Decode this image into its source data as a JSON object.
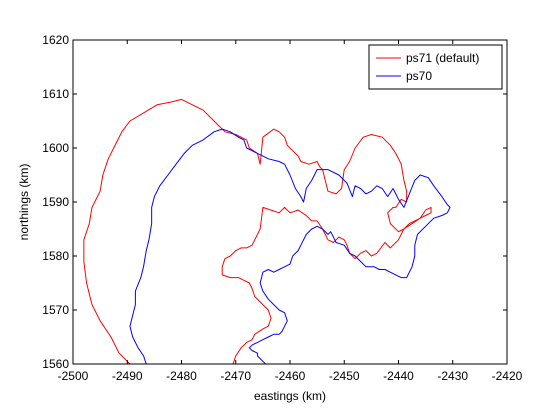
{
  "chart_data": {
    "type": "line",
    "title": "",
    "xlabel": "eastings (km)",
    "ylabel": "northings (km)",
    "xlim": [
      -2500,
      -2420
    ],
    "ylim": [
      1560,
      1620
    ],
    "xticks": [
      -2500,
      -2490,
      -2480,
      -2470,
      -2460,
      -2450,
      -2440,
      -2430,
      -2420
    ],
    "yticks": [
      1560,
      1570,
      1580,
      1590,
      1600,
      1610,
      1620
    ],
    "xtick_labels": [
      "-2500",
      "-2490",
      "-2480",
      "-2470",
      "-2460",
      "-2450",
      "-2440",
      "-2430",
      "-2420"
    ],
    "ytick_labels": [
      "1560",
      "1570",
      "1580",
      "1590",
      "1600",
      "1610",
      "1620"
    ],
    "grid": false,
    "legend_position": "top-right",
    "series": [
      {
        "name": "ps71 (default)",
        "color": "#ff0000",
        "x": [
          -2489.5,
          -2491.5,
          -2493.0,
          -2495.0,
          -2496.5,
          -2497.5,
          -2498.0,
          -2498.0,
          -2497.0,
          -2496.5,
          -2495.0,
          -2494.5,
          -2493.5,
          -2492.0,
          -2491.0,
          -2489.5,
          -2487.0,
          -2484.5,
          -2482.0,
          -2480.0,
          -2478.0,
          -2476.0,
          -2474.0,
          -2472.0,
          -2470.0,
          -2468.0,
          -2467.5,
          -2466.0,
          -2465.5,
          -2465.0,
          -2463.0,
          -2462.0,
          -2461.0,
          -2460.5,
          -2459.5,
          -2458.5,
          -2458.0,
          -2456.5,
          -2455.0,
          -2454.5,
          -2454.0,
          -2453.5,
          -2453.0,
          -2451.5,
          -2450.5,
          -2450.0,
          -2449.0,
          -2448.0,
          -2446.5,
          -2445.0,
          -2443.0,
          -2441.5,
          -2440.5,
          -2439.5,
          -2439.0,
          -2438.5,
          -2438.5,
          -2439.5,
          -2440.5,
          -2441.0,
          -2442.0,
          -2441.5,
          -2440.0,
          -2439.0,
          -2437.5,
          -2436.0,
          -2435.0,
          -2434.0,
          -2434.0,
          -2435.0,
          -2436.0,
          -2437.0,
          -2438.0,
          -2439.0,
          -2440.0,
          -2441.5,
          -2442.5,
          -2444.0,
          -2445.0,
          -2446.0,
          -2447.0,
          -2448.0,
          -2449.0,
          -2449.5,
          -2450.0,
          -2451.0,
          -2452.0,
          -2453.0,
          -2454.0,
          -2455.0,
          -2456.0,
          -2457.0,
          -2458.5,
          -2460.0,
          -2461.0,
          -2462.0,
          -2463.5,
          -2465.0,
          -2465.5,
          -2466.0,
          -2466.5,
          -2467.0,
          -2468.0,
          -2469.0,
          -2470.0,
          -2471.0,
          -2472.0,
          -2472.5,
          -2472.5,
          -2471.0,
          -2469.5,
          -2468.5,
          -2467.5,
          -2467.0,
          -2466.5,
          -2465.0,
          -2464.0,
          -2463.5,
          -2464.0,
          -2465.0,
          -2466.5,
          -2467.0,
          -2468.0,
          -2469.0,
          -2470.0,
          -2470.5
        ],
        "y": [
          1560.0,
          1562.0,
          1565.0,
          1568.0,
          1571.0,
          1575.0,
          1579.0,
          1583.0,
          1586.0,
          1589.0,
          1592.0,
          1595.0,
          1598.0,
          1601.0,
          1603.0,
          1605.0,
          1606.5,
          1608.0,
          1608.5,
          1609.0,
          1608.0,
          1607.0,
          1605.0,
          1603.0,
          1602.5,
          1601.5,
          1600.0,
          1599.0,
          1597.0,
          1602.0,
          1603.5,
          1603.0,
          1602.0,
          1600.5,
          1599.5,
          1598.5,
          1597.5,
          1597.0,
          1597.5,
          1596.5,
          1596.0,
          1594.0,
          1592.0,
          1591.5,
          1592.5,
          1596.0,
          1597.5,
          1600.0,
          1602.0,
          1602.5,
          1602.0,
          1600.5,
          1599.0,
          1597.0,
          1594.0,
          1592.0,
          1590.0,
          1590.5,
          1589.0,
          1589.0,
          1588.0,
          1586.0,
          1584.5,
          1585.0,
          1586.0,
          1587.0,
          1588.5,
          1589.0,
          1588.0,
          1587.5,
          1587.0,
          1586.5,
          1586.0,
          1585.0,
          1583.0,
          1581.5,
          1582.5,
          1580.5,
          1580.0,
          1581.0,
          1580.5,
          1579.5,
          1580.5,
          1582.0,
          1583.0,
          1583.5,
          1582.5,
          1583.0,
          1585.0,
          1586.5,
          1586.5,
          1587.5,
          1588.5,
          1588.0,
          1589.0,
          1588.0,
          1588.5,
          1589.0,
          1585.0,
          1584.0,
          1583.0,
          1582.0,
          1581.5,
          1581.5,
          1581.0,
          1580.0,
          1579.5,
          1578.0,
          1576.5,
          1576.0,
          1576.0,
          1575.5,
          1575.0,
          1574.0,
          1572.5,
          1571.0,
          1570.0,
          1568.5,
          1567.0,
          1566.5,
          1565.5,
          1564.5,
          1564.0,
          1563.0,
          1561.5,
          1560.0
        ]
      },
      {
        "name": "ps70",
        "color": "#0000ff",
        "x": [
          -2486.5,
          -2487.0,
          -2488.0,
          -2489.0,
          -2489.5,
          -2489.0,
          -2488.5,
          -2488.5,
          -2487.5,
          -2487.0,
          -2486.5,
          -2486.0,
          -2485.5,
          -2485.5,
          -2485.0,
          -2484.0,
          -2482.5,
          -2481.0,
          -2479.5,
          -2478.0,
          -2476.0,
          -2474.0,
          -2472.5,
          -2471.0,
          -2469.5,
          -2468.5,
          -2468.0,
          -2467.0,
          -2466.0,
          -2465.0,
          -2464.0,
          -2462.0,
          -2461.0,
          -2460.0,
          -2459.0,
          -2458.0,
          -2457.5,
          -2457.0,
          -2456.0,
          -2455.0,
          -2453.0,
          -2451.0,
          -2449.5,
          -2448.5,
          -2448.0,
          -2447.0,
          -2446.0,
          -2445.0,
          -2444.0,
          -2443.0,
          -2442.0,
          -2441.0,
          -2440.5,
          -2440.0,
          -2439.0,
          -2438.0,
          -2437.0,
          -2436.0,
          -2434.5,
          -2433.5,
          -2432.0,
          -2431.0,
          -2430.5,
          -2431.0,
          -2432.0,
          -2433.5,
          -2435.0,
          -2436.5,
          -2437.0,
          -2437.0,
          -2437.5,
          -2438.0,
          -2438.5,
          -2439.5,
          -2440.5,
          -2441.5,
          -2442.5,
          -2443.5,
          -2444.5,
          -2446.0,
          -2447.0,
          -2448.0,
          -2449.0,
          -2450.0,
          -2451.5,
          -2452.5,
          -2453.0,
          -2454.0,
          -2455.0,
          -2456.0,
          -2457.0,
          -2457.5,
          -2458.0,
          -2458.5,
          -2459.5,
          -2460.0,
          -2461.0,
          -2462.0,
          -2463.0,
          -2464.0,
          -2465.0,
          -2465.5,
          -2465.0,
          -2464.0,
          -2463.0,
          -2462.0,
          -2461.0,
          -2460.5,
          -2461.0,
          -2461.5,
          -2462.0,
          -2463.0,
          -2464.0,
          -2465.0,
          -2466.0,
          -2467.0,
          -2467.5,
          -2467.0,
          -2466.0,
          -2466.0,
          -2465.5,
          -2465.0,
          -2464.5
        ],
        "y": [
          1560.0,
          1561.5,
          1563.0,
          1565.0,
          1567.0,
          1569.0,
          1571.0,
          1573.5,
          1576.0,
          1578.0,
          1581.0,
          1583.0,
          1586.0,
          1589.0,
          1591.0,
          1593.0,
          1595.0,
          1597.0,
          1599.0,
          1600.5,
          1601.5,
          1603.0,
          1603.5,
          1603.0,
          1602.0,
          1601.5,
          1600.0,
          1599.5,
          1599.0,
          1598.5,
          1598.0,
          1597.5,
          1597.0,
          1595.0,
          1592.5,
          1591.0,
          1590.0,
          1592.5,
          1594.0,
          1596.0,
          1596.0,
          1595.0,
          1593.5,
          1591.0,
          1593.0,
          1592.5,
          1591.5,
          1592.0,
          1593.0,
          1592.5,
          1591.0,
          1592.5,
          1591.5,
          1590.5,
          1589.0,
          1591.5,
          1594.0,
          1595.0,
          1594.5,
          1593.0,
          1591.0,
          1589.5,
          1589.0,
          1588.0,
          1587.5,
          1587.0,
          1585.5,
          1584.0,
          1582.0,
          1580.0,
          1578.0,
          1577.0,
          1576.0,
          1576.0,
          1576.5,
          1577.0,
          1577.5,
          1577.5,
          1578.0,
          1578.0,
          1579.0,
          1580.0,
          1580.5,
          1582.0,
          1582.5,
          1584.5,
          1584.0,
          1585.0,
          1585.5,
          1585.0,
          1584.0,
          1583.0,
          1582.0,
          1581.0,
          1580.0,
          1578.5,
          1578.0,
          1577.5,
          1577.0,
          1577.5,
          1577.0,
          1575.0,
          1573.5,
          1572.0,
          1571.0,
          1570.0,
          1569.5,
          1568.0,
          1567.0,
          1566.0,
          1565.5,
          1565.5,
          1565.0,
          1564.5,
          1564.0,
          1563.5,
          1563.0,
          1562.5,
          1562.0,
          1561.5,
          1561.0,
          1560.5,
          1560.0
        ]
      }
    ]
  }
}
